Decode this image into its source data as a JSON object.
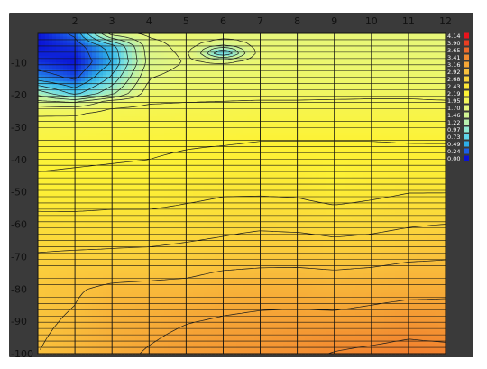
{
  "chart_data": {
    "type": "heatmap",
    "title": "",
    "xlabel": "",
    "ylabel": "",
    "x_ticks": [
      2,
      3,
      4,
      5,
      6,
      7,
      8,
      9,
      10,
      11,
      12
    ],
    "y_ticks": [
      -10,
      -20,
      -30,
      -40,
      -50,
      -60,
      -70,
      -80,
      -90,
      -100
    ],
    "xlim": [
      1,
      12
    ],
    "ylim": [
      -100,
      -1
    ],
    "grid": true,
    "legend_placement": "right",
    "color_scale": [
      {
        "value": "4.14",
        "color": "#e8141c"
      },
      {
        "value": "3.90",
        "color": "#ea3e21"
      },
      {
        "value": "3.65",
        "color": "#ee6a2a"
      },
      {
        "value": "3.41",
        "color": "#f28a30"
      },
      {
        "value": "3.16",
        "color": "#f6a636"
      },
      {
        "value": "2.92",
        "color": "#f9c03c"
      },
      {
        "value": "2.68",
        "color": "#fbd53c"
      },
      {
        "value": "2.43",
        "color": "#fce637"
      },
      {
        "value": "2.19",
        "color": "#fdf235"
      },
      {
        "value": "1.95",
        "color": "#f3f65a"
      },
      {
        "value": "1.70",
        "color": "#e6f77e"
      },
      {
        "value": "1.46",
        "color": "#d2f593"
      },
      {
        "value": "1.22",
        "color": "#b8f1ae"
      },
      {
        "value": "0.97",
        "color": "#8fe8d2"
      },
      {
        "value": "0.73",
        "color": "#5fd4ea"
      },
      {
        "value": "0.49",
        "color": "#2eaee8"
      },
      {
        "value": "0.24",
        "color": "#1b5fe6"
      },
      {
        "value": "0.00",
        "color": "#0a12d6"
      }
    ],
    "y_samples": [
      -1,
      -5,
      -10,
      -15,
      -20,
      -22,
      -25,
      -30,
      -35,
      -40,
      -45,
      -50,
      -55,
      -60,
      -65,
      -70,
      -75,
      -80,
      -85,
      -90,
      -95,
      -100
    ],
    "values": [
      [
        0.0,
        0.3,
        1.6,
        1.75,
        1.78,
        1.78,
        1.7,
        1.72,
        1.75,
        1.74,
        1.74,
        1.73
      ],
      [
        0.0,
        0.1,
        0.6,
        1.6,
        1.78,
        1.6,
        1.78,
        1.76,
        1.77,
        1.76,
        1.76,
        1.75
      ],
      [
        0.1,
        0.0,
        0.5,
        1.55,
        1.72,
        1.75,
        1.8,
        1.82,
        1.8,
        1.8,
        1.8,
        1.8
      ],
      [
        0.4,
        0.2,
        0.8,
        1.7,
        1.8,
        1.82,
        1.84,
        1.85,
        1.84,
        1.84,
        1.84,
        1.83
      ],
      [
        1.2,
        0.7,
        1.2,
        1.85,
        1.88,
        1.9,
        1.9,
        1.9,
        1.9,
        1.92,
        1.92,
        1.9
      ],
      [
        1.5,
        1.4,
        1.8,
        1.92,
        1.94,
        1.95,
        1.96,
        1.96,
        1.97,
        1.97,
        1.97,
        1.96
      ],
      [
        1.9,
        1.9,
        2.0,
        2.02,
        2.03,
        2.04,
        2.05,
        2.05,
        2.05,
        2.05,
        2.05,
        2.04
      ],
      [
        2.05,
        2.06,
        2.08,
        2.09,
        2.1,
        2.1,
        2.12,
        2.12,
        2.12,
        2.12,
        2.12,
        2.11
      ],
      [
        2.12,
        2.13,
        2.14,
        2.15,
        2.17,
        2.18,
        2.2,
        2.2,
        2.2,
        2.2,
        2.19,
        2.19
      ],
      [
        2.16,
        2.17,
        2.18,
        2.19,
        2.22,
        2.25,
        2.27,
        2.25,
        2.2,
        2.25,
        2.26,
        2.25
      ],
      [
        2.2,
        2.21,
        2.22,
        2.23,
        2.27,
        2.32,
        2.34,
        2.3,
        2.2,
        2.28,
        2.32,
        2.33
      ],
      [
        2.25,
        2.26,
        2.27,
        2.28,
        2.35,
        2.4,
        2.4,
        2.38,
        2.3,
        2.36,
        2.42,
        2.42
      ],
      [
        2.4,
        2.4,
        2.42,
        2.42,
        2.46,
        2.5,
        2.52,
        2.52,
        2.46,
        2.5,
        2.55,
        2.56
      ],
      [
        2.55,
        2.54,
        2.55,
        2.55,
        2.58,
        2.62,
        2.64,
        2.62,
        2.6,
        2.62,
        2.66,
        2.68
      ],
      [
        2.62,
        2.62,
        2.64,
        2.64,
        2.67,
        2.7,
        2.74,
        2.74,
        2.7,
        2.72,
        2.76,
        2.8
      ],
      [
        2.7,
        2.72,
        2.72,
        2.74,
        2.76,
        2.8,
        2.83,
        2.84,
        2.82,
        2.84,
        2.88,
        2.9
      ],
      [
        2.78,
        2.82,
        2.85,
        2.86,
        2.88,
        2.94,
        2.96,
        2.96,
        2.94,
        2.96,
        3.0,
        3.0
      ],
      [
        2.84,
        2.9,
        2.96,
        2.98,
        3.0,
        3.04,
        3.06,
        3.06,
        3.04,
        3.06,
        3.08,
        3.1
      ],
      [
        2.86,
        2.92,
        3.02,
        3.05,
        3.08,
        3.12,
        3.14,
        3.14,
        3.13,
        3.16,
        3.2,
        3.2
      ],
      [
        2.88,
        2.95,
        3.05,
        3.1,
        3.15,
        3.18,
        3.2,
        3.22,
        3.22,
        3.24,
        3.3,
        3.28
      ],
      [
        2.9,
        2.98,
        3.08,
        3.14,
        3.2,
        3.24,
        3.26,
        3.3,
        3.34,
        3.36,
        3.4,
        3.38
      ],
      [
        2.92,
        3.0,
        3.1,
        3.18,
        3.24,
        3.28,
        3.32,
        3.36,
        3.42,
        3.46,
        3.5,
        3.48
      ]
    ]
  }
}
